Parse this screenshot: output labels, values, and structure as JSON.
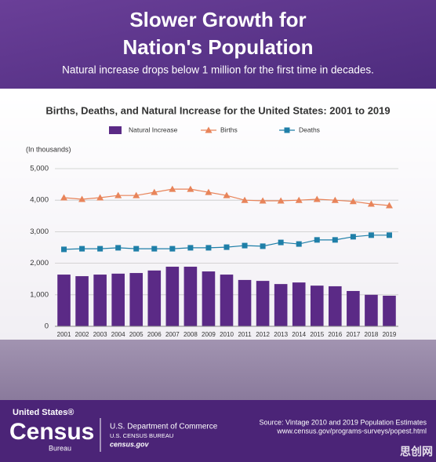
{
  "header": {
    "title_lines": [
      "Slower Growth for",
      "Nation's Population"
    ],
    "subtitle": "Natural increase drops below 1 million for the first time in decades."
  },
  "chart_data": {
    "type": "bar-line",
    "title": "Births, Deaths, and Natural Increase for the United States: 2001 to 2019",
    "y_label": "(In thousands)",
    "categories": [
      "2001",
      "2002",
      "2003",
      "2004",
      "2005",
      "2006",
      "2007",
      "2008",
      "2009",
      "2010",
      "2011",
      "2012",
      "2013",
      "2014",
      "2015",
      "2016",
      "2017",
      "2018",
      "2019"
    ],
    "series": [
      {
        "name": "Natural Increase",
        "type": "bar",
        "color": "#5b2a86",
        "values": [
          1640,
          1590,
          1640,
          1670,
          1690,
          1770,
          1890,
          1890,
          1740,
          1640,
          1470,
          1440,
          1340,
          1390,
          1290,
          1270,
          1120,
          1000,
          970
        ]
      },
      {
        "name": "Births",
        "type": "line",
        "marker": "triangle",
        "color": "#e8845a",
        "values": [
          4080,
          4030,
          4080,
          4150,
          4150,
          4250,
          4350,
          4350,
          4250,
          4150,
          4000,
          3980,
          3980,
          4000,
          4030,
          4000,
          3960,
          3880,
          3830
        ]
      },
      {
        "name": "Deaths",
        "type": "line",
        "marker": "square",
        "color": "#1f7fa8",
        "values": [
          2440,
          2460,
          2460,
          2490,
          2460,
          2460,
          2460,
          2490,
          2490,
          2510,
          2560,
          2540,
          2660,
          2610,
          2740,
          2740,
          2840,
          2890,
          2890
        ]
      }
    ],
    "ylim": [
      0,
      5000
    ],
    "yticks": [
      0,
      {
        "value": 1000,
        "label": "1,000"
      },
      {
        "value": 2000,
        "label": "2,000"
      },
      {
        "value": 3000,
        "label": "3,000"
      },
      {
        "value": 4000,
        "label": "4,000"
      },
      {
        "value": 5000,
        "label": "5,000"
      }
    ],
    "grid": true
  },
  "footer": {
    "logo_top": "United States®",
    "logo_main": "Census",
    "logo_bottom": "Bureau",
    "department": "U.S. Department of Commerce",
    "bureau": "U.S. CENSUS BUREAU",
    "website": "census.gov",
    "source": "Source: Vintage 2010 and 2019 Population Estimates",
    "source_url": "www.census.gov/programs-surveys/popest.html",
    "watermark": "思创网"
  }
}
